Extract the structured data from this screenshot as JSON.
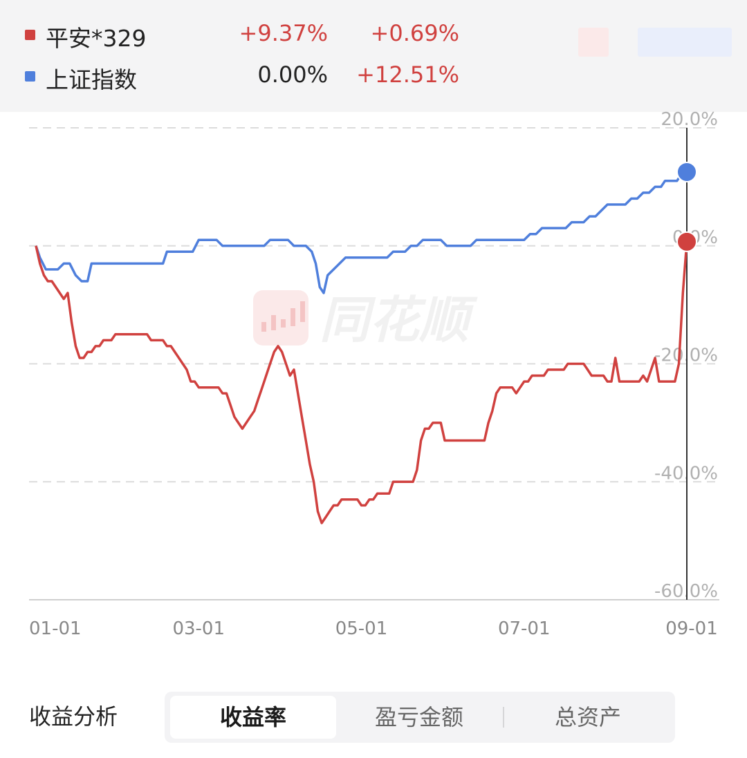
{
  "legend": {
    "items": [
      {
        "name": "平安*329",
        "value1": "+9.37%",
        "value2": "+0.69%",
        "color": "#d0413f",
        "value1_color": "#d0413f",
        "value2_color": "#d0413f"
      },
      {
        "name": "上证指数",
        "value1": "0.00%",
        "value2": "+12.51%",
        "color": "#4f7fdc",
        "value1_color": "#222222",
        "value2_color": "#d0413f"
      }
    ]
  },
  "watermark": {
    "text": "同花顺"
  },
  "chart_data": {
    "type": "line",
    "x_tick_labels": [
      "01-01",
      "03-01",
      "05-01",
      "07-01",
      "09-01"
    ],
    "y_tick_labels": [
      "20.0%",
      "0.0%",
      "-20.0%",
      "-40.0%",
      "-60.0%"
    ],
    "ylim": [
      -60,
      20
    ],
    "grid": true,
    "series": [
      {
        "name": "上证指数",
        "color": "#4f7fdc",
        "points": [
          [
            0,
            0
          ],
          [
            2,
            -2
          ],
          [
            5,
            -4
          ],
          [
            8,
            -4
          ],
          [
            11,
            -4
          ],
          [
            14,
            -3
          ],
          [
            17,
            -3
          ],
          [
            20,
            -5
          ],
          [
            23,
            -6
          ],
          [
            26,
            -6
          ],
          [
            28,
            -3
          ],
          [
            31,
            -3
          ],
          [
            34,
            -3
          ],
          [
            37,
            -3
          ],
          [
            40,
            -3
          ],
          [
            43,
            -3
          ],
          [
            46,
            -3
          ],
          [
            49,
            -3
          ],
          [
            52,
            -3
          ],
          [
            55,
            -3
          ],
          [
            58,
            -3
          ],
          [
            61,
            -3
          ],
          [
            64,
            -3
          ],
          [
            66,
            -1
          ],
          [
            70,
            -1
          ],
          [
            73,
            -1
          ],
          [
            76,
            -1
          ],
          [
            79,
            -1
          ],
          [
            82,
            1
          ],
          [
            85,
            1
          ],
          [
            88,
            1
          ],
          [
            91,
            1
          ],
          [
            94,
            0
          ],
          [
            97,
            0
          ],
          [
            100,
            0
          ],
          [
            103,
            0
          ],
          [
            106,
            0
          ],
          [
            109,
            0
          ],
          [
            112,
            0
          ],
          [
            115,
            0
          ],
          [
            118,
            1
          ],
          [
            121,
            1
          ],
          [
            124,
            1
          ],
          [
            127,
            1
          ],
          [
            130,
            0
          ],
          [
            133,
            0
          ],
          [
            136,
            0
          ],
          [
            139,
            -1
          ],
          [
            141,
            -3
          ],
          [
            143,
            -7
          ],
          [
            145,
            -8
          ],
          [
            147,
            -5
          ],
          [
            150,
            -4
          ],
          [
            153,
            -3
          ],
          [
            156,
            -2
          ],
          [
            159,
            -2
          ],
          [
            162,
            -2
          ],
          [
            165,
            -2
          ],
          [
            168,
            -2
          ],
          [
            171,
            -2
          ],
          [
            174,
            -2
          ],
          [
            177,
            -2
          ],
          [
            180,
            -1
          ],
          [
            183,
            -1
          ],
          [
            186,
            -1
          ],
          [
            189,
            0
          ],
          [
            192,
            0
          ],
          [
            195,
            1
          ],
          [
            198,
            1
          ],
          [
            201,
            1
          ],
          [
            204,
            1
          ],
          [
            207,
            0
          ],
          [
            210,
            0
          ],
          [
            213,
            0
          ],
          [
            216,
            0
          ],
          [
            219,
            0
          ],
          [
            222,
            1
          ],
          [
            225,
            1
          ],
          [
            228,
            1
          ],
          [
            231,
            1
          ],
          [
            234,
            1
          ],
          [
            237,
            1
          ],
          [
            240,
            1
          ],
          [
            243,
            1
          ],
          [
            246,
            1
          ],
          [
            249,
            2
          ],
          [
            252,
            2
          ],
          [
            255,
            3
          ],
          [
            258,
            3
          ],
          [
            261,
            3
          ],
          [
            264,
            3
          ],
          [
            267,
            3
          ],
          [
            270,
            4
          ],
          [
            273,
            4
          ],
          [
            276,
            4
          ],
          [
            279,
            5
          ],
          [
            282,
            5
          ],
          [
            285,
            6
          ],
          [
            288,
            7
          ],
          [
            291,
            7
          ],
          [
            294,
            7
          ],
          [
            297,
            7
          ],
          [
            300,
            8
          ],
          [
            303,
            8
          ],
          [
            306,
            9
          ],
          [
            309,
            9
          ],
          [
            312,
            10
          ],
          [
            315,
            10
          ],
          [
            317,
            11
          ],
          [
            319,
            11
          ],
          [
            321,
            11
          ],
          [
            323,
            11
          ],
          [
            325,
            12
          ],
          [
            327,
            12
          ],
          [
            328,
            12.51
          ]
        ]
      },
      {
        "name": "平安*329",
        "color": "#d0413f",
        "points": [
          [
            0,
            0
          ],
          [
            2,
            -3
          ],
          [
            4,
            -5
          ],
          [
            6,
            -6
          ],
          [
            8,
            -6
          ],
          [
            10,
            -7
          ],
          [
            12,
            -8
          ],
          [
            14,
            -9
          ],
          [
            16,
            -8
          ],
          [
            18,
            -13
          ],
          [
            20,
            -17
          ],
          [
            22,
            -19
          ],
          [
            24,
            -19
          ],
          [
            26,
            -18
          ],
          [
            28,
            -18
          ],
          [
            30,
            -17
          ],
          [
            32,
            -17
          ],
          [
            34,
            -16
          ],
          [
            36,
            -16
          ],
          [
            38,
            -16
          ],
          [
            40,
            -15
          ],
          [
            42,
            -15
          ],
          [
            44,
            -15
          ],
          [
            46,
            -15
          ],
          [
            48,
            -15
          ],
          [
            50,
            -15
          ],
          [
            52,
            -15
          ],
          [
            54,
            -15
          ],
          [
            56,
            -15
          ],
          [
            58,
            -16
          ],
          [
            60,
            -16
          ],
          [
            62,
            -16
          ],
          [
            64,
            -16
          ],
          [
            66,
            -17
          ],
          [
            68,
            -17
          ],
          [
            70,
            -18
          ],
          [
            72,
            -19
          ],
          [
            74,
            -20
          ],
          [
            76,
            -21
          ],
          [
            78,
            -23
          ],
          [
            80,
            -23
          ],
          [
            82,
            -24
          ],
          [
            84,
            -24
          ],
          [
            86,
            -24
          ],
          [
            88,
            -24
          ],
          [
            90,
            -24
          ],
          [
            92,
            -24
          ],
          [
            94,
            -25
          ],
          [
            96,
            -25
          ],
          [
            98,
            -27
          ],
          [
            100,
            -29
          ],
          [
            102,
            -30
          ],
          [
            104,
            -31
          ],
          [
            106,
            -30
          ],
          [
            108,
            -29
          ],
          [
            110,
            -28
          ],
          [
            112,
            -26
          ],
          [
            114,
            -24
          ],
          [
            116,
            -22
          ],
          [
            118,
            -20
          ],
          [
            120,
            -18
          ],
          [
            122,
            -17
          ],
          [
            124,
            -18
          ],
          [
            126,
            -20
          ],
          [
            128,
            -22
          ],
          [
            130,
            -21
          ],
          [
            132,
            -25
          ],
          [
            134,
            -29
          ],
          [
            136,
            -33
          ],
          [
            138,
            -37
          ],
          [
            140,
            -40
          ],
          [
            142,
            -45
          ],
          [
            144,
            -47
          ],
          [
            146,
            -46
          ],
          [
            148,
            -45
          ],
          [
            150,
            -44
          ],
          [
            152,
            -44
          ],
          [
            154,
            -43
          ],
          [
            156,
            -43
          ],
          [
            158,
            -43
          ],
          [
            160,
            -43
          ],
          [
            162,
            -43
          ],
          [
            164,
            -44
          ],
          [
            166,
            -44
          ],
          [
            168,
            -43
          ],
          [
            170,
            -43
          ],
          [
            172,
            -42
          ],
          [
            174,
            -42
          ],
          [
            176,
            -42
          ],
          [
            178,
            -42
          ],
          [
            180,
            -40
          ],
          [
            182,
            -40
          ],
          [
            184,
            -40
          ],
          [
            186,
            -40
          ],
          [
            188,
            -40
          ],
          [
            190,
            -40
          ],
          [
            192,
            -38
          ],
          [
            194,
            -33
          ],
          [
            196,
            -31
          ],
          [
            198,
            -31
          ],
          [
            200,
            -30
          ],
          [
            202,
            -30
          ],
          [
            204,
            -30
          ],
          [
            206,
            -33
          ],
          [
            208,
            -33
          ],
          [
            210,
            -33
          ],
          [
            212,
            -33
          ],
          [
            214,
            -33
          ],
          [
            216,
            -33
          ],
          [
            218,
            -33
          ],
          [
            220,
            -33
          ],
          [
            222,
            -33
          ],
          [
            224,
            -33
          ],
          [
            226,
            -33
          ],
          [
            228,
            -30
          ],
          [
            230,
            -28
          ],
          [
            232,
            -25
          ],
          [
            234,
            -24
          ],
          [
            236,
            -24
          ],
          [
            238,
            -24
          ],
          [
            240,
            -24
          ],
          [
            242,
            -25
          ],
          [
            244,
            -24
          ],
          [
            246,
            -23
          ],
          [
            248,
            -23
          ],
          [
            250,
            -22
          ],
          [
            252,
            -22
          ],
          [
            254,
            -22
          ],
          [
            256,
            -22
          ],
          [
            258,
            -21
          ],
          [
            260,
            -21
          ],
          [
            262,
            -21
          ],
          [
            264,
            -21
          ],
          [
            266,
            -21
          ],
          [
            268,
            -20
          ],
          [
            270,
            -20
          ],
          [
            272,
            -20
          ],
          [
            274,
            -20
          ],
          [
            276,
            -20
          ],
          [
            278,
            -21
          ],
          [
            280,
            -22
          ],
          [
            282,
            -22
          ],
          [
            284,
            -22
          ],
          [
            286,
            -22
          ],
          [
            288,
            -23
          ],
          [
            290,
            -23
          ],
          [
            292,
            -19
          ],
          [
            294,
            -23
          ],
          [
            296,
            -23
          ],
          [
            298,
            -23
          ],
          [
            300,
            -23
          ],
          [
            302,
            -23
          ],
          [
            304,
            -23
          ],
          [
            306,
            -22
          ],
          [
            308,
            -23
          ],
          [
            310,
            -21
          ],
          [
            312,
            -19
          ],
          [
            314,
            -23
          ],
          [
            316,
            -23
          ],
          [
            318,
            -23
          ],
          [
            320,
            -23
          ],
          [
            322,
            -23
          ],
          [
            324,
            -20
          ],
          [
            326,
            -8
          ],
          [
            328,
            0.69
          ]
        ]
      }
    ],
    "x_span": [
      0,
      328
    ],
    "x_tick_positions": [
      0,
      82,
      164,
      246,
      328
    ]
  },
  "bottom": {
    "section_title": "收益分析",
    "tabs": [
      {
        "label": "收益率",
        "active": true
      },
      {
        "label": "盈亏金额",
        "active": false
      },
      {
        "label": "总资产",
        "active": false
      }
    ]
  }
}
